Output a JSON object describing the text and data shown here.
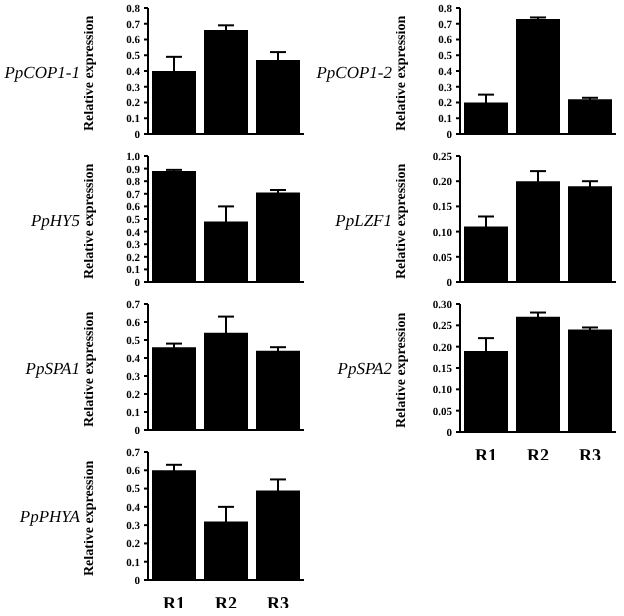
{
  "chart_data": [
    {
      "type": "bar",
      "title": "PpCOP1-1",
      "ylabel": "Relative expression",
      "categories": [
        null,
        null,
        null
      ],
      "values": [
        0.4,
        0.66,
        0.47
      ],
      "errors": [
        0.09,
        0.03,
        0.05
      ],
      "color": "#000000",
      "ylim": [
        0,
        0.8
      ],
      "yticks": [
        0,
        0.1,
        0.2,
        0.3,
        0.4,
        0.5,
        0.6,
        0.7,
        0.8
      ],
      "tick_labels": "y",
      "grid": false,
      "legend": false
    },
    {
      "type": "bar",
      "title": "PpCOP1-2",
      "ylabel": "Relative expression",
      "categories": [
        null,
        null,
        null
      ],
      "values": [
        0.2,
        0.73,
        0.22
      ],
      "errors": [
        0.05,
        0.01,
        0.01
      ],
      "color": "#000000",
      "ylim": [
        0,
        0.8
      ],
      "yticks": [
        0,
        0.1,
        0.2,
        0.3,
        0.4,
        0.5,
        0.6,
        0.7,
        0.8
      ],
      "tick_labels": "y",
      "grid": false,
      "legend": false
    },
    {
      "type": "bar",
      "title": "PpHY5",
      "ylabel": "Relative expression",
      "categories": [
        null,
        null,
        null
      ],
      "values": [
        0.88,
        0.48,
        0.71
      ],
      "errors": [
        0.01,
        0.12,
        0.02
      ],
      "color": "#000000",
      "ylim": [
        0,
        1.0
      ],
      "yticks": [
        0,
        0.1,
        0.2,
        0.3,
        0.4,
        0.5,
        0.6,
        0.7,
        0.8,
        0.9,
        {
          "value": 1.0,
          "label": "1.0"
        }
      ],
      "tick_labels": "y",
      "grid": false,
      "legend": false
    },
    {
      "type": "bar",
      "title": "PpLZF1",
      "ylabel": "Relative expression",
      "categories": [
        null,
        null,
        null
      ],
      "values": [
        0.11,
        0.2,
        0.19
      ],
      "errors": [
        0.02,
        0.02,
        0.01
      ],
      "color": "#000000",
      "ylim": [
        0,
        0.25
      ],
      "yticks": [
        0,
        0.05,
        {
          "value": 0.1,
          "label": "0.10"
        },
        0.15,
        {
          "value": 0.2,
          "label": "0.20"
        },
        0.25
      ],
      "tick_labels": "y",
      "grid": false,
      "legend": false
    },
    {
      "type": "bar",
      "title": "PpSPA1",
      "ylabel": "Relative expression",
      "categories": [
        null,
        null,
        null
      ],
      "values": [
        0.46,
        0.54,
        0.44
      ],
      "errors": [
        0.02,
        0.09,
        0.02
      ],
      "color": "#000000",
      "ylim": [
        0,
        0.7
      ],
      "yticks": [
        0,
        0.1,
        0.2,
        0.3,
        0.4,
        0.5,
        0.6,
        0.7
      ],
      "tick_labels": "y",
      "grid": false,
      "legend": false
    },
    {
      "type": "bar",
      "title": "PpSPA2",
      "ylabel": "Relative expression",
      "categories": [
        "R1",
        "R2",
        "R3"
      ],
      "values": [
        0.19,
        0.27,
        0.24
      ],
      "errors": [
        0.03,
        0.01,
        0.005
      ],
      "color": "#000000",
      "ylim": [
        0,
        0.3
      ],
      "yticks": [
        0,
        0.05,
        {
          "value": 0.1,
          "label": "0.10"
        },
        0.15,
        {
          "value": 0.2,
          "label": "0.20"
        },
        0.25,
        {
          "value": 0.3,
          "label": "0.30"
        }
      ],
      "grid": false,
      "legend": false
    },
    {
      "type": "bar",
      "title": "PpPHYA",
      "ylabel": "Relative expression",
      "categories": [
        "R1",
        "R2",
        "R3"
      ],
      "values": [
        0.6,
        0.32,
        0.49
      ],
      "errors": [
        0.03,
        0.08,
        0.06
      ],
      "color": "#000000",
      "ylim": [
        0,
        0.7
      ],
      "yticks": [
        0,
        0.1,
        0.2,
        0.3,
        0.4,
        0.5,
        0.6,
        0.7
      ],
      "grid": false,
      "legend": false
    }
  ]
}
